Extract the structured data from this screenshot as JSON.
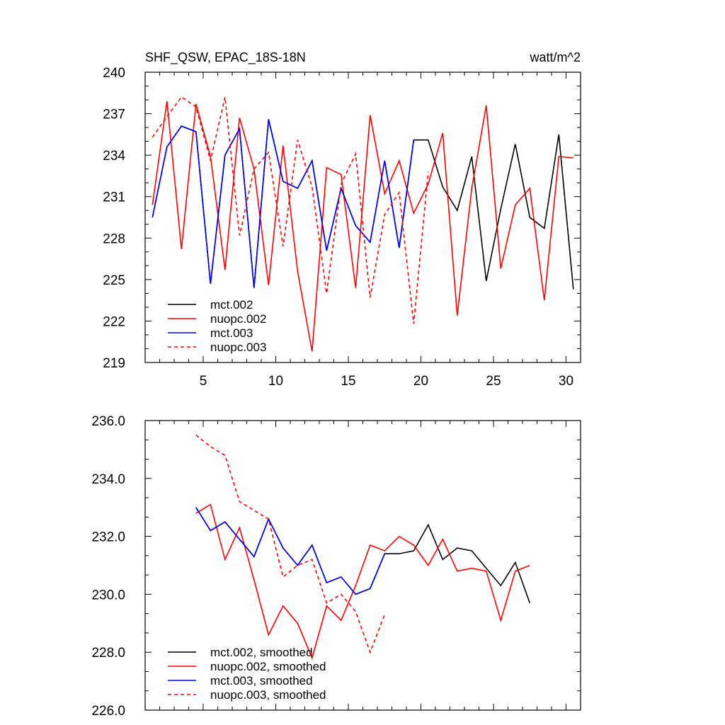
{
  "chart_data": [
    {
      "type": "line",
      "title": "SHF_QSW, EPAC_18S-18N",
      "units": "watt/m^2",
      "xlim": [
        1,
        31
      ],
      "ylim": [
        219,
        240
      ],
      "xticks": [
        5,
        10,
        15,
        20,
        25,
        30
      ],
      "yticks": [
        219,
        222,
        225,
        228,
        231,
        234,
        237,
        240
      ],
      "ytick_decimals": 0,
      "series": [
        {
          "name": "mct.002",
          "color": "#000000",
          "dash": false,
          "x": [
            1.5,
            2.5,
            3.5,
            4.5,
            5.5,
            6.5,
            7.5,
            8.5,
            9.5,
            10.5,
            11.5,
            12.5,
            13.5,
            14.5,
            15.5,
            16.5,
            17.5,
            18.5,
            19.5,
            20.5,
            21.5,
            22.5,
            23.5,
            24.5,
            25.5,
            26.5,
            27.5,
            28.5,
            29.5,
            30.5
          ],
          "y": [
            229.5,
            234.6,
            236.1,
            235.7,
            224.7,
            234.0,
            235.9,
            224.4,
            236.6,
            232.1,
            231.6,
            233.6,
            227.1,
            231.6,
            228.9,
            227.7,
            233.6,
            227.3,
            235.1,
            235.1,
            231.7,
            230.0,
            233.9,
            224.9,
            230.1,
            234.8,
            229.5,
            228.7,
            235.5,
            224.3
          ]
        },
        {
          "name": "nuopc.002",
          "color": "#ff0000",
          "dash": false,
          "x": [
            1.5,
            2.5,
            3.5,
            4.5,
            5.5,
            6.5,
            7.5,
            8.5,
            9.5,
            10.5,
            11.5,
            12.5,
            13.5,
            14.5,
            15.5,
            16.5,
            17.5,
            18.5,
            19.5,
            20.5,
            21.5,
            22.5,
            23.5,
            24.5,
            25.5,
            26.5,
            27.5,
            28.5,
            29.5,
            30.5
          ],
          "y": [
            230.4,
            237.9,
            227.2,
            237.7,
            233.9,
            225.7,
            236.7,
            233.0,
            224.6,
            234.7,
            225.6,
            219.8,
            233.1,
            232.6,
            224.4,
            236.9,
            231.2,
            233.6,
            229.8,
            231.9,
            235.6,
            222.4,
            231.6,
            237.6,
            225.8,
            230.4,
            231.6,
            223.5,
            233.9,
            233.8
          ]
        },
        {
          "name": "mct.003",
          "color": "#0000ff",
          "dash": false,
          "x": [
            1.5,
            2.5,
            3.5,
            4.5,
            5.5,
            6.5,
            7.5,
            8.5,
            9.5,
            10.5,
            11.5,
            12.5,
            13.5,
            14.5,
            15.5,
            16.5,
            17.5,
            18.5,
            19.5
          ],
          "y": [
            229.5,
            234.6,
            236.1,
            235.7,
            224.7,
            234.0,
            235.9,
            224.4,
            236.6,
            232.1,
            231.6,
            233.6,
            227.1,
            231.6,
            228.9,
            227.7,
            233.6,
            227.3,
            235.1
          ]
        },
        {
          "name": "nuopc.003",
          "color": "#ff0000",
          "dash": true,
          "x": [
            1.5,
            2.5,
            3.5,
            4.5,
            5.5,
            6.5,
            7.5,
            8.5,
            9.5,
            10.5,
            11.5,
            12.5,
            13.5,
            14.5,
            15.5,
            16.5,
            17.5,
            18.5,
            19.5,
            20.5
          ],
          "y": [
            235.3,
            236.8,
            238.2,
            237.5,
            233.6,
            238.2,
            228.2,
            233.0,
            234.2,
            227.4,
            235.1,
            231.7,
            224.0,
            231.9,
            234.1,
            223.7,
            229.7,
            231.3,
            221.8,
            232.8
          ]
        }
      ]
    },
    {
      "type": "line",
      "xlim": [
        1,
        31
      ],
      "ylim": [
        226,
        236
      ],
      "xticks": [
        5,
        10,
        15,
        20,
        25,
        30
      ],
      "yticks": [
        226,
        228,
        230,
        232,
        234,
        236
      ],
      "ytick_decimals": 1,
      "series": [
        {
          "name": "mct.002, smoothed",
          "color": "#000000",
          "dash": false,
          "x": [
            4.5,
            5.5,
            6.5,
            7.5,
            8.5,
            9.5,
            10.5,
            11.5,
            12.5,
            13.5,
            14.5,
            15.5,
            16.5,
            17.5,
            18.5,
            19.5,
            20.5,
            21.5,
            22.5,
            23.5,
            24.5,
            25.5,
            26.5,
            27.5
          ],
          "y": [
            233.0,
            232.2,
            232.5,
            231.9,
            231.3,
            232.6,
            231.6,
            231.0,
            231.7,
            230.4,
            230.6,
            230.0,
            230.2,
            231.4,
            231.4,
            231.5,
            232.4,
            231.2,
            231.6,
            231.5,
            230.9,
            230.3,
            231.1,
            229.7
          ]
        },
        {
          "name": "nuopc.002, smoothed",
          "color": "#ff0000",
          "dash": false,
          "x": [
            4.5,
            5.5,
            6.5,
            7.5,
            8.5,
            9.5,
            10.5,
            11.5,
            12.5,
            13.5,
            14.5,
            15.5,
            16.5,
            17.5,
            18.5,
            19.5,
            20.5,
            21.5,
            22.5,
            23.5,
            24.5,
            25.5,
            26.5,
            27.5
          ],
          "y": [
            232.8,
            233.1,
            231.2,
            232.3,
            230.5,
            228.6,
            229.6,
            229.0,
            227.8,
            229.6,
            229.1,
            230.3,
            231.7,
            231.5,
            232.0,
            231.7,
            231.0,
            231.9,
            230.8,
            230.9,
            230.8,
            229.1,
            230.8,
            231.0
          ]
        },
        {
          "name": "mct.003, smoothed",
          "color": "#0000ff",
          "dash": false,
          "x": [
            4.5,
            5.5,
            6.5,
            7.5,
            8.5,
            9.5,
            10.5,
            11.5,
            12.5,
            13.5,
            14.5,
            15.5,
            16.5,
            17.5
          ],
          "y": [
            233.0,
            232.2,
            232.5,
            231.9,
            231.3,
            232.6,
            231.6,
            231.0,
            231.7,
            230.4,
            230.6,
            230.0,
            230.2,
            231.4
          ]
        },
        {
          "name": "nuopc.003, smoothed",
          "color": "#ff0000",
          "dash": true,
          "x": [
            4.5,
            5.5,
            6.5,
            7.5,
            8.5,
            9.5,
            10.5,
            11.5,
            12.5,
            13.5,
            14.5,
            15.5,
            16.5,
            17.5
          ],
          "y": [
            235.5,
            235.1,
            234.8,
            233.2,
            232.9,
            232.6,
            230.6,
            231.0,
            231.2,
            229.7,
            230.0,
            229.4,
            228.0,
            229.3
          ]
        }
      ]
    }
  ]
}
